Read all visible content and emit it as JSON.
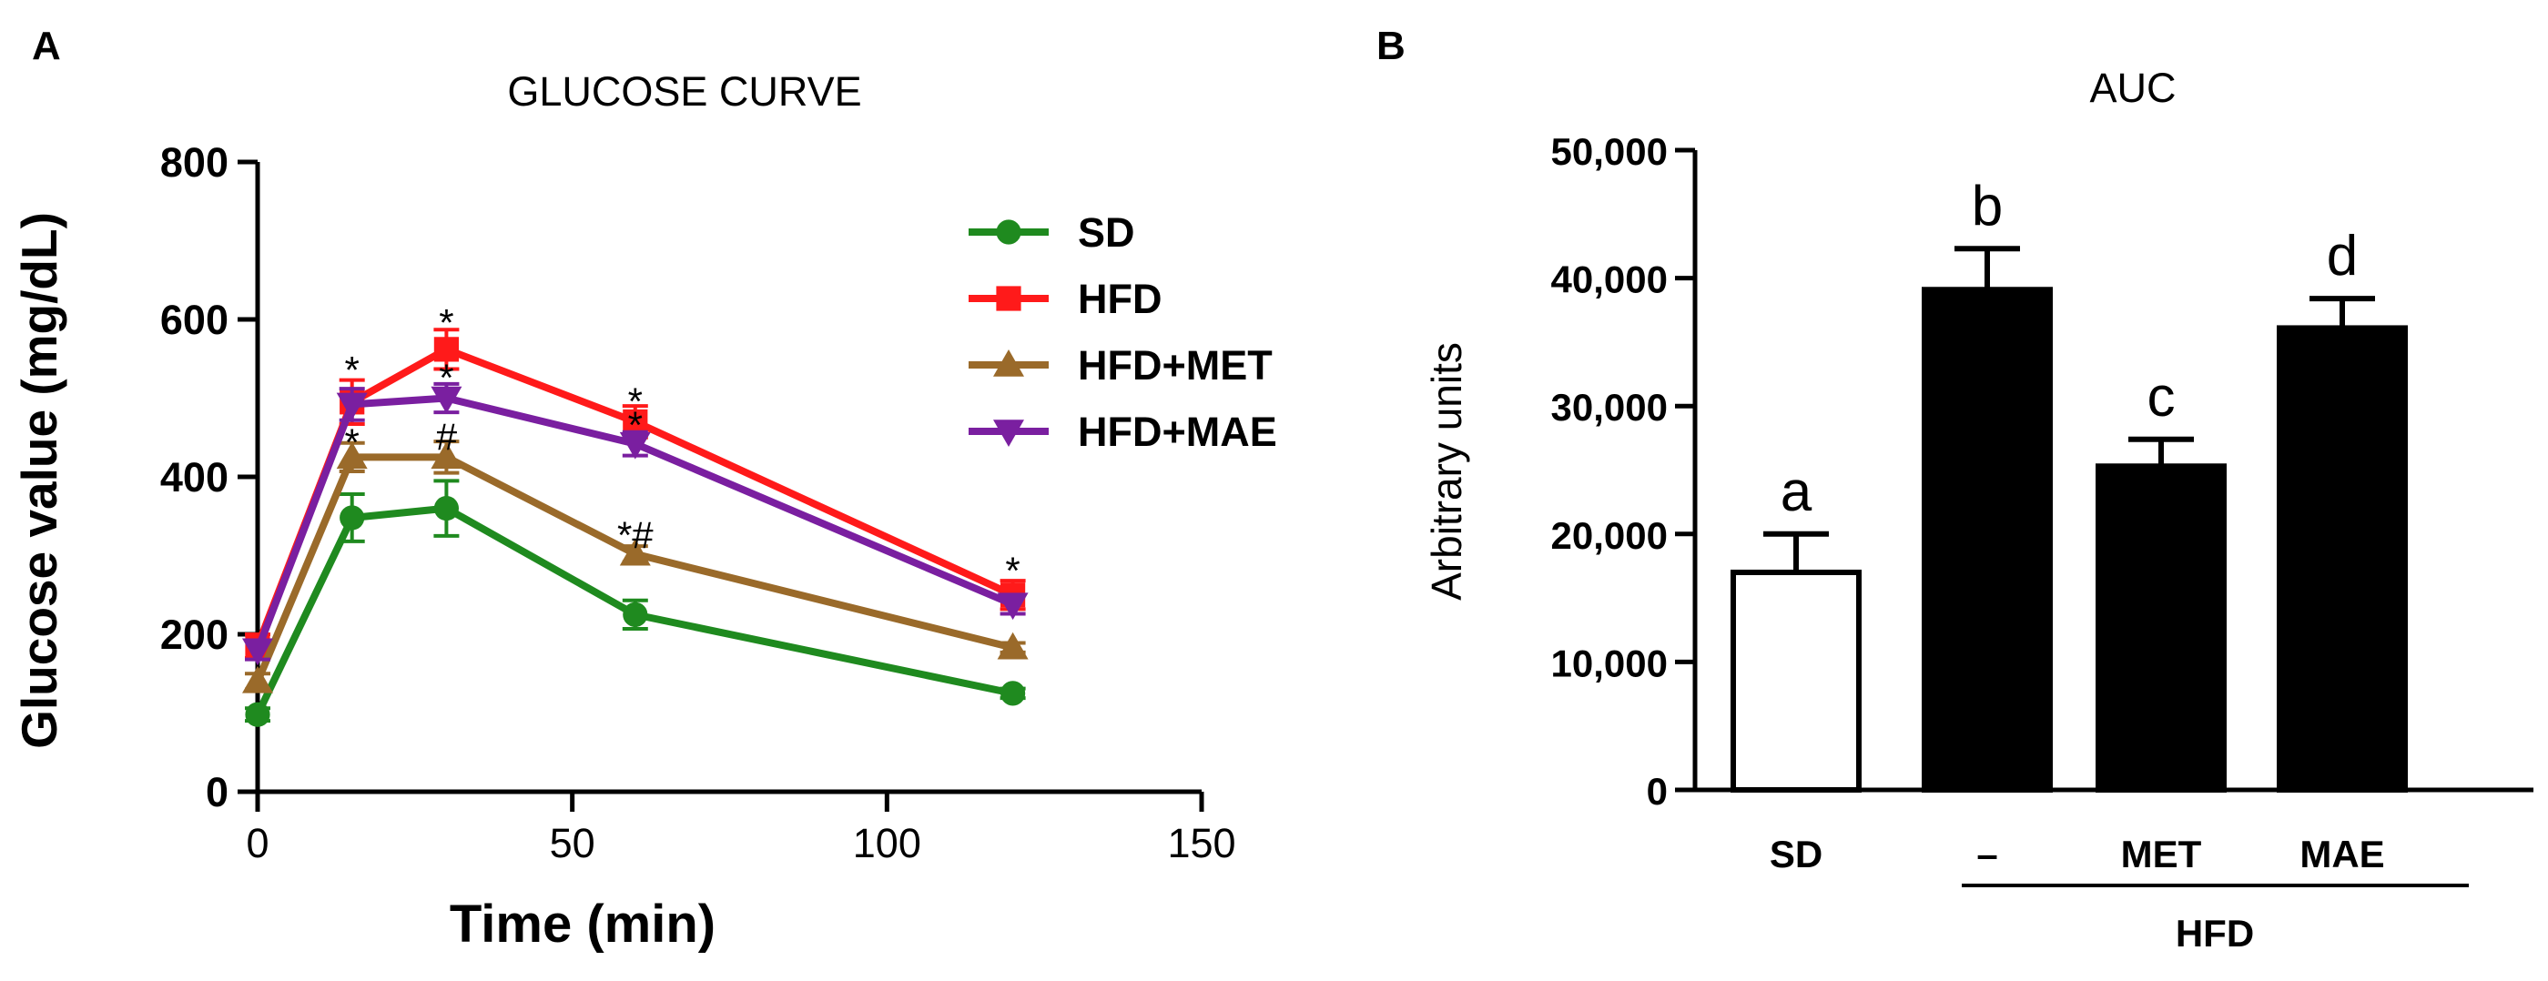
{
  "panel_a": {
    "label": "A",
    "chart_data": {
      "type": "line",
      "title": "GLUCOSE CURVE",
      "xlabel": "Time (min)",
      "ylabel": "Glucose value (mg/dL)",
      "xlim": [
        0,
        150
      ],
      "ylim": [
        0,
        800
      ],
      "xticks": [
        0,
        50,
        100,
        150
      ],
      "yticks": [
        0,
        200,
        400,
        600,
        800
      ],
      "x": [
        0,
        15,
        30,
        60,
        120
      ],
      "series": [
        {
          "name": "SD",
          "color": "#1f8a1f",
          "marker": "circle",
          "values": [
            98,
            348,
            360,
            225,
            125
          ],
          "errors": [
            8,
            30,
            35,
            18,
            6
          ]
        },
        {
          "name": "HFD",
          "color": "#ff1a1a",
          "marker": "square",
          "values": [
            185,
            495,
            562,
            470,
            250
          ],
          "errors": [
            15,
            28,
            25,
            20,
            18
          ]
        },
        {
          "name": "HFD+MET",
          "color": "#9a6a2a",
          "marker": "triangle-up",
          "values": [
            140,
            425,
            425,
            302,
            183
          ],
          "errors": [
            10,
            18,
            20,
            10,
            6
          ]
        },
        {
          "name": "HFD+MAE",
          "color": "#7a1fa0",
          "marker": "triangle-down",
          "values": [
            180,
            492,
            500,
            442,
            238
          ],
          "errors": [
            12,
            20,
            18,
            15,
            12
          ]
        }
      ],
      "annotations": [
        {
          "text": "*",
          "x": 15,
          "y": 540
        },
        {
          "text": "*",
          "x": 30,
          "y": 600
        },
        {
          "text": "*",
          "x": 60,
          "y": 500
        },
        {
          "text": "*",
          "x": 120,
          "y": 285
        },
        {
          "text": "*",
          "x": 30,
          "y": 530
        },
        {
          "text": "*",
          "x": 60,
          "y": 470
        },
        {
          "text": "*",
          "x": 15,
          "y": 448
        },
        {
          "text": "#",
          "x": 30,
          "y": 455
        },
        {
          "text": "*#",
          "x": 60,
          "y": 330
        }
      ],
      "legend_position": "top-right"
    }
  },
  "panel_b": {
    "label": "B",
    "chart_data": {
      "type": "bar",
      "title": "AUC",
      "ylabel": "Arbitrary units",
      "ylim": [
        0,
        50000
      ],
      "yticks": [
        0,
        10000,
        20000,
        30000,
        40000,
        50000
      ],
      "ytick_labels": [
        "0",
        "10,000",
        "20,000",
        "30,000",
        "40,000",
        "50,000"
      ],
      "categories": [
        "SD",
        "–",
        "MET",
        "MAE"
      ],
      "values": [
        17000,
        39100,
        25300,
        36100
      ],
      "errors": [
        3000,
        3200,
        2100,
        2300
      ],
      "fills": [
        "#ffffff",
        "#000000",
        "#000000",
        "#000000"
      ],
      "significance_letters": [
        "a",
        "b",
        "c",
        "d"
      ],
      "group_label": "HFD"
    }
  }
}
